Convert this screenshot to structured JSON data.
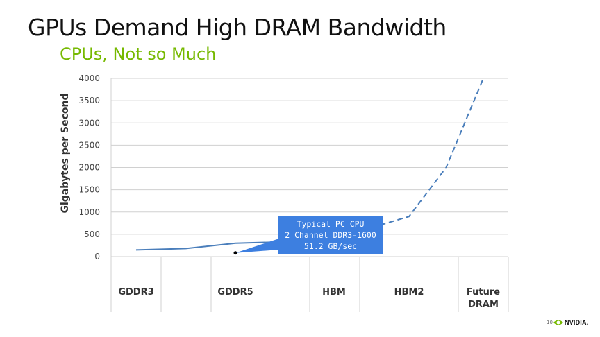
{
  "slide": {
    "title": "GPUs Demand High DRAM Bandwidth",
    "subtitle": "CPUs, Not so Much",
    "page_number": "10",
    "logo_text": "NVIDIA."
  },
  "callout": {
    "lines": [
      "Typical PC CPU",
      "2 Channel DDR3-1600",
      "51.2 GB/sec"
    ]
  },
  "colors": {
    "accent_green": "#76b900",
    "series_line": "#4a7ebb",
    "callout_bg": "#3d7fe0"
  },
  "chart_data": {
    "type": "line",
    "ylabel": "Gigabytes per Second",
    "ylim": [
      0,
      4000
    ],
    "yticks": [
      0,
      500,
      1000,
      1500,
      2000,
      2500,
      3000,
      3500,
      4000
    ],
    "grid": true,
    "categories": [
      "GDDR3",
      "GDDR5",
      "HBM",
      "HBM2",
      "Future DRAM"
    ],
    "category_labels": [
      [
        "GDDR3"
      ],
      [
        "GDDR5"
      ],
      [
        "HBM"
      ],
      [
        "HBM2"
      ],
      [
        "Future",
        "DRAM"
      ]
    ],
    "series": [
      {
        "style": "solid",
        "points": [
          [
            0,
            150
          ],
          [
            0.5,
            180
          ],
          [
            1,
            300
          ],
          [
            1.5,
            330
          ],
          [
            2,
            480
          ],
          [
            2.5,
            650
          ]
        ]
      },
      {
        "style": "dashed",
        "points": [
          [
            2.5,
            650
          ],
          [
            3,
            900
          ],
          [
            3.5,
            2000
          ],
          [
            4,
            4000
          ]
        ]
      }
    ],
    "markers": [
      {
        "x": 1,
        "y": 51.2
      }
    ]
  }
}
